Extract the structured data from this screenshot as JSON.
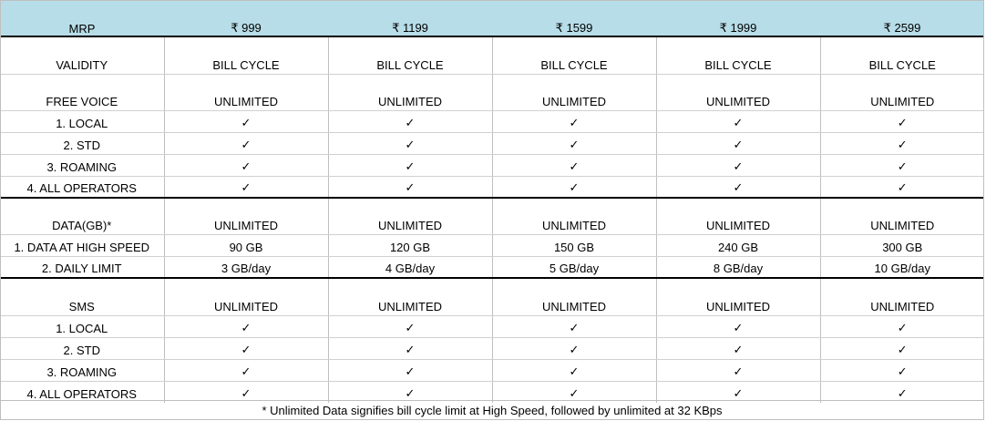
{
  "mrp_label": "MRP",
  "prices": [
    "₹ 999",
    "₹ 1199",
    "₹ 1599",
    "₹ 1999",
    "₹ 2599"
  ],
  "check_glyph": "✓",
  "rows": {
    "validity": {
      "label": "VALIDITY",
      "values": [
        "BILL CYCLE",
        "BILL CYCLE",
        "BILL CYCLE",
        "BILL CYCLE",
        "BILL CYCLE"
      ]
    },
    "free_voice": {
      "label": "FREE VOICE",
      "values": [
        "UNLIMITED",
        "UNLIMITED",
        "UNLIMITED",
        "UNLIMITED",
        "UNLIMITED"
      ]
    },
    "voice_local": {
      "label": "1. LOCAL"
    },
    "voice_std": {
      "label": "2. STD"
    },
    "voice_roaming": {
      "label": "3. ROAMING"
    },
    "voice_all": {
      "label": "4. ALL OPERATORS"
    },
    "data": {
      "label": "DATA(GB)*",
      "values": [
        "UNLIMITED",
        "UNLIMITED",
        "UNLIMITED",
        "UNLIMITED",
        "UNLIMITED"
      ]
    },
    "data_high": {
      "label": "1. DATA AT HIGH SPEED",
      "values": [
        "90 GB",
        "120 GB",
        "150 GB",
        "240 GB",
        "300 GB"
      ]
    },
    "data_daily": {
      "label": "2. DAILY LIMIT",
      "values": [
        "3 GB/day",
        "4 GB/day",
        "5 GB/day",
        "8 GB/day",
        "10 GB/day"
      ]
    },
    "sms": {
      "label": "SMS",
      "values": [
        "UNLIMITED",
        "UNLIMITED",
        "UNLIMITED",
        "UNLIMITED",
        "UNLIMITED"
      ]
    },
    "sms_local": {
      "label": "1. LOCAL"
    },
    "sms_std": {
      "label": "2. STD"
    },
    "sms_roaming": {
      "label": "3. ROAMING"
    },
    "sms_all": {
      "label": "4. ALL OPERATORS"
    }
  },
  "footnote": "* Unlimited Data signifies bill cycle limit at High Speed, followed by unlimited at 32 KBps"
}
